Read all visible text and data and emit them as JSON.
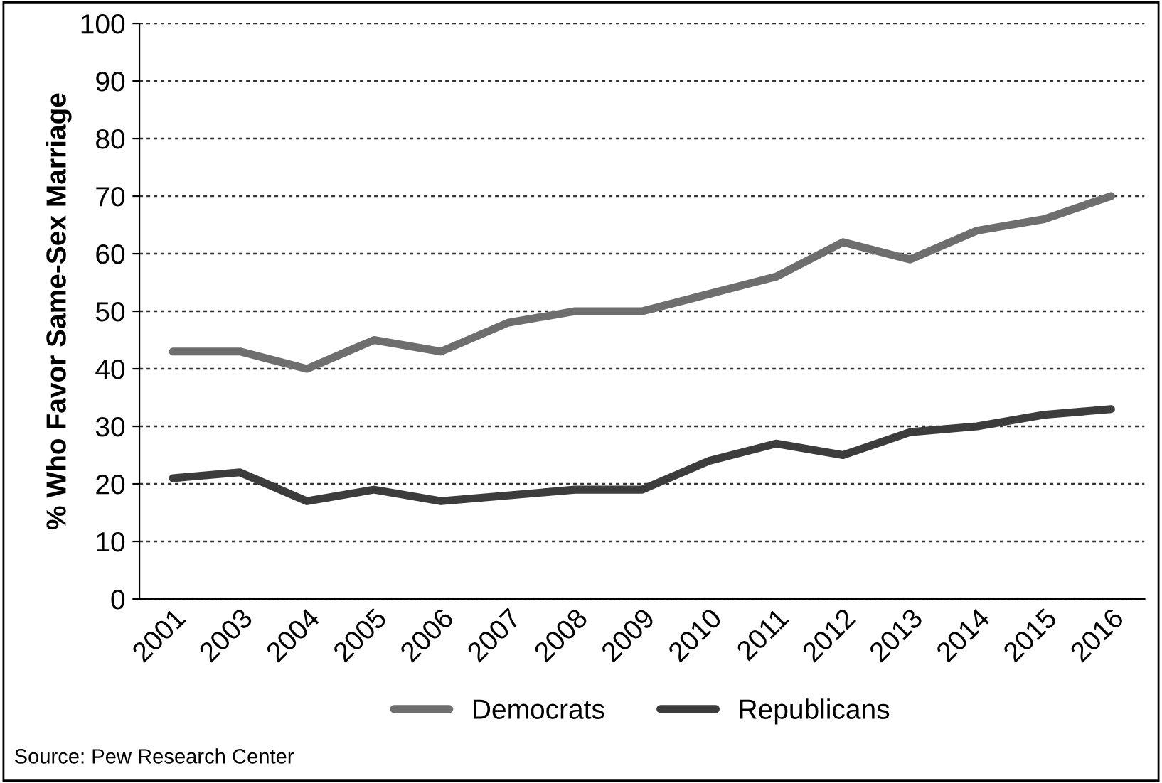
{
  "chart_data": {
    "type": "line",
    "ylabel": "% Who Favor Same-Sex Marriage",
    "categories": [
      "2001",
      "2003",
      "2004",
      "2005",
      "2006",
      "2007",
      "2008",
      "2009",
      "2010",
      "2011",
      "2012",
      "2013",
      "2014",
      "2015",
      "2016"
    ],
    "series": [
      {
        "name": "Democrats",
        "color": "#6e6e6e",
        "values": [
          43,
          43,
          40,
          45,
          43,
          48,
          50,
          50,
          53,
          56,
          62,
          59,
          64,
          66,
          70
        ]
      },
      {
        "name": "Republicans",
        "color": "#3c3c3c",
        "values": [
          21,
          22,
          17,
          19,
          17,
          18,
          19,
          19,
          24,
          27,
          25,
          29,
          30,
          32,
          33
        ]
      }
    ],
    "ylim": [
      0,
      100
    ],
    "yticks": [
      0,
      10,
      20,
      30,
      40,
      50,
      60,
      70,
      80,
      90,
      100
    ],
    "grid": "y",
    "legend": "bottom",
    "marker": "none",
    "line_style": "solid",
    "annotations": [
      "Source: Pew Research Center"
    ]
  }
}
